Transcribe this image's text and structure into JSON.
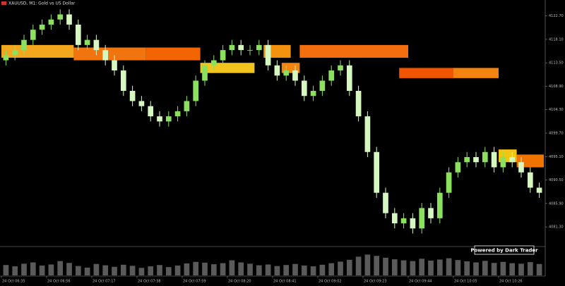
{
  "chart_data": {
    "type": "candlestick",
    "title": "XAUUSD, M1: Gold vs US Dollar",
    "watermark": "Powered by Dark Trader",
    "up_color": "#8be060",
    "down_color": "#d6f8c0",
    "background": "#000000",
    "categories": [
      "24 Oct 06:35",
      null,
      null,
      null,
      null,
      "24 Oct 06:56",
      null,
      null,
      null,
      null,
      "24 Oct 07:17",
      null,
      null,
      null,
      null,
      "24 Oct 07:38",
      null,
      null,
      null,
      null,
      "24 Oct 07:59",
      null,
      null,
      null,
      null,
      "24 Oct 08:20",
      null,
      null,
      null,
      null,
      "24 Oct 08:41",
      null,
      null,
      null,
      null,
      "24 Oct 09:02",
      null,
      null,
      null,
      null,
      "24 Oct 09:23",
      null,
      null,
      null,
      null,
      "24 Oct 09:44",
      null,
      null,
      null,
      null,
      "24 Oct 10:05",
      null,
      null,
      null,
      null,
      "24 Oct 10:26",
      null,
      null,
      null,
      null
    ],
    "open": [
      4114,
      4115,
      4116,
      4118,
      4120,
      4121,
      4122,
      4123,
      4121,
      4117,
      4118,
      4116,
      4114,
      4112,
      4108,
      4106,
      4105,
      4103,
      4102,
      4103,
      4104,
      4106,
      4110,
      4113,
      4114,
      4116,
      4117,
      4116,
      4116,
      4117,
      4113,
      4111,
      4112,
      4110,
      4107,
      4108,
      4110,
      4112,
      4113,
      4108,
      4103,
      4096,
      4088,
      4084,
      4082,
      4083,
      4081,
      4085,
      4083,
      4088,
      4092,
      4094,
      4095,
      4094,
      4096,
      4093,
      4095,
      4094,
      4092,
      4089
    ],
    "high": [
      4116,
      4117,
      4119,
      4121,
      4122,
      4123,
      4124,
      4124,
      4122,
      4119,
      4119,
      4117,
      4115,
      4113,
      4109,
      4107,
      4106,
      4104,
      4104,
      4105,
      4107,
      4111,
      4114,
      4115,
      4117,
      4118,
      4118,
      4117,
      4118,
      4118,
      4114,
      4113,
      4113,
      4111,
      4109,
      4111,
      4113,
      4114,
      4114,
      4109,
      4104,
      4097,
      4089,
      4085,
      4084,
      4084,
      4086,
      4086,
      4089,
      4093,
      4095,
      4096,
      4096,
      4097,
      4097,
      4096,
      4096,
      4095,
      4093,
      4090
    ],
    "low": [
      4113,
      4114,
      4115,
      4117,
      4119,
      4120,
      4121,
      4120,
      4116,
      4116,
      4115,
      4113,
      4111,
      4107,
      4105,
      4104,
      4102,
      4101,
      4101,
      4102,
      4103,
      4105,
      4109,
      4112,
      4113,
      4115,
      4115,
      4115,
      4115,
      4112,
      4110,
      4110,
      4109,
      4106,
      4106,
      4107,
      4109,
      4111,
      4107,
      4102,
      4095,
      4087,
      4083,
      4081,
      4081,
      4080,
      4080,
      4082,
      4082,
      4087,
      4091,
      4093,
      4093,
      4093,
      4092,
      4092,
      4093,
      4091,
      4088,
      4087
    ],
    "close": [
      4115,
      4116,
      4118,
      4120,
      4121,
      4122,
      4123,
      4121,
      4117,
      4118,
      4116,
      4114,
      4112,
      4108,
      4106,
      4105,
      4103,
      4102,
      4103,
      4104,
      4106,
      4110,
      4113,
      4114,
      4116,
      4117,
      4116,
      4116,
      4117,
      4113,
      4111,
      4112,
      4110,
      4107,
      4108,
      4110,
      4112,
      4113,
      4108,
      4103,
      4096,
      4088,
      4084,
      4082,
      4083,
      4081,
      4085,
      4083,
      4088,
      4092,
      4094,
      4095,
      4094,
      4096,
      4093,
      4095,
      4094,
      4092,
      4089,
      4088
    ],
    "volume": [
      40,
      35,
      45,
      50,
      38,
      42,
      55,
      48,
      36,
      30,
      44,
      39,
      33,
      41,
      37,
      29,
      35,
      40,
      32,
      38,
      46,
      52,
      49,
      43,
      47,
      58,
      50,
      45,
      39,
      42,
      36,
      40,
      44,
      38,
      35,
      41,
      47,
      53,
      60,
      72,
      80,
      75,
      68,
      62,
      58,
      55,
      64,
      57,
      61,
      66,
      59,
      54,
      50,
      56,
      48,
      52,
      47,
      45,
      51,
      44
    ],
    "volume_color": "#5a5a5a",
    "ylim": [
      4078,
      4125
    ],
    "vlim": [
      0,
      100
    ],
    "yticks": [
      {
        "value": 4122.7,
        "label": "4122.70"
      },
      {
        "value": 4118.1,
        "label": "4118.10"
      },
      {
        "value": 4113.5,
        "label": "4113.50"
      },
      {
        "value": 4108.9,
        "label": "4108.90"
      },
      {
        "value": 4104.3,
        "label": "4104.30"
      },
      {
        "value": 4099.7,
        "label": "4099.70"
      },
      {
        "value": 4095.1,
        "label": "4095.10"
      },
      {
        "value": 4090.5,
        "label": "4090.50"
      },
      {
        "value": 4085.9,
        "label": "4085.90"
      },
      {
        "value": 4081.3,
        "label": "4081.30"
      }
    ],
    "zones": [
      {
        "start": 0,
        "end": 8,
        "low": 4114.5,
        "high": 4117,
        "color": "#ffb020"
      },
      {
        "start": 8,
        "end": 16,
        "low": 4114,
        "high": 4116.5,
        "color": "#ff7a10"
      },
      {
        "start": 16,
        "end": 22,
        "low": 4114,
        "high": 4116.5,
        "color": "#ff6a00"
      },
      {
        "start": 22,
        "end": 28,
        "low": 4111.5,
        "high": 4113.5,
        "color": "#ffd020"
      },
      {
        "start": 29,
        "end": 32,
        "low": 4114.5,
        "high": 4117,
        "color": "#ff9a10"
      },
      {
        "start": 33,
        "end": 45,
        "low": 4114.5,
        "high": 4117,
        "color": "#ff7410"
      },
      {
        "start": 31,
        "end": 33,
        "low": 4111.5,
        "high": 4113.5,
        "color": "#ff8c10"
      },
      {
        "start": 44,
        "end": 50,
        "low": 4110.5,
        "high": 4112.5,
        "color": "#ff5a00"
      },
      {
        "start": 50,
        "end": 55,
        "low": 4110.5,
        "high": 4112.5,
        "color": "#ff8a10"
      },
      {
        "start": 55,
        "end": 57,
        "low": 4094,
        "high": 4096.5,
        "color": "#ffd010"
      },
      {
        "start": 57,
        "end": 60,
        "low": 4093,
        "high": 4095.5,
        "color": "#ff7a00"
      }
    ]
  }
}
